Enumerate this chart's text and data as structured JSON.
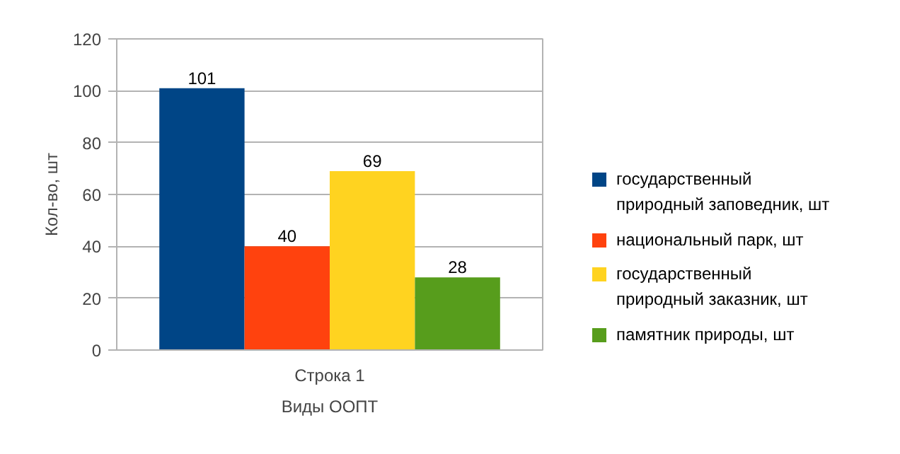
{
  "chart_data": {
    "type": "bar",
    "xlabel": "Виды ООПТ",
    "ylabel": "Кол-во, шт",
    "categories": [
      "Строка 1"
    ],
    "series": [
      {
        "name": "государственный природный заповедник, шт",
        "color": "#004586",
        "values": [
          101
        ]
      },
      {
        "name": "национальный парк, шт",
        "color": "#ff420e",
        "values": [
          40
        ]
      },
      {
        "name": "государственный природный заказник, шт",
        "color": "#ffd320",
        "values": [
          69
        ]
      },
      {
        "name": "памятник природы, шт",
        "color": "#579d1c",
        "values": [
          28
        ]
      }
    ],
    "ylim": [
      0,
      120
    ],
    "yticks": [
      0,
      20,
      40,
      60,
      80,
      100,
      120
    ],
    "grid": "y",
    "legend": "right",
    "data_labels": true
  }
}
